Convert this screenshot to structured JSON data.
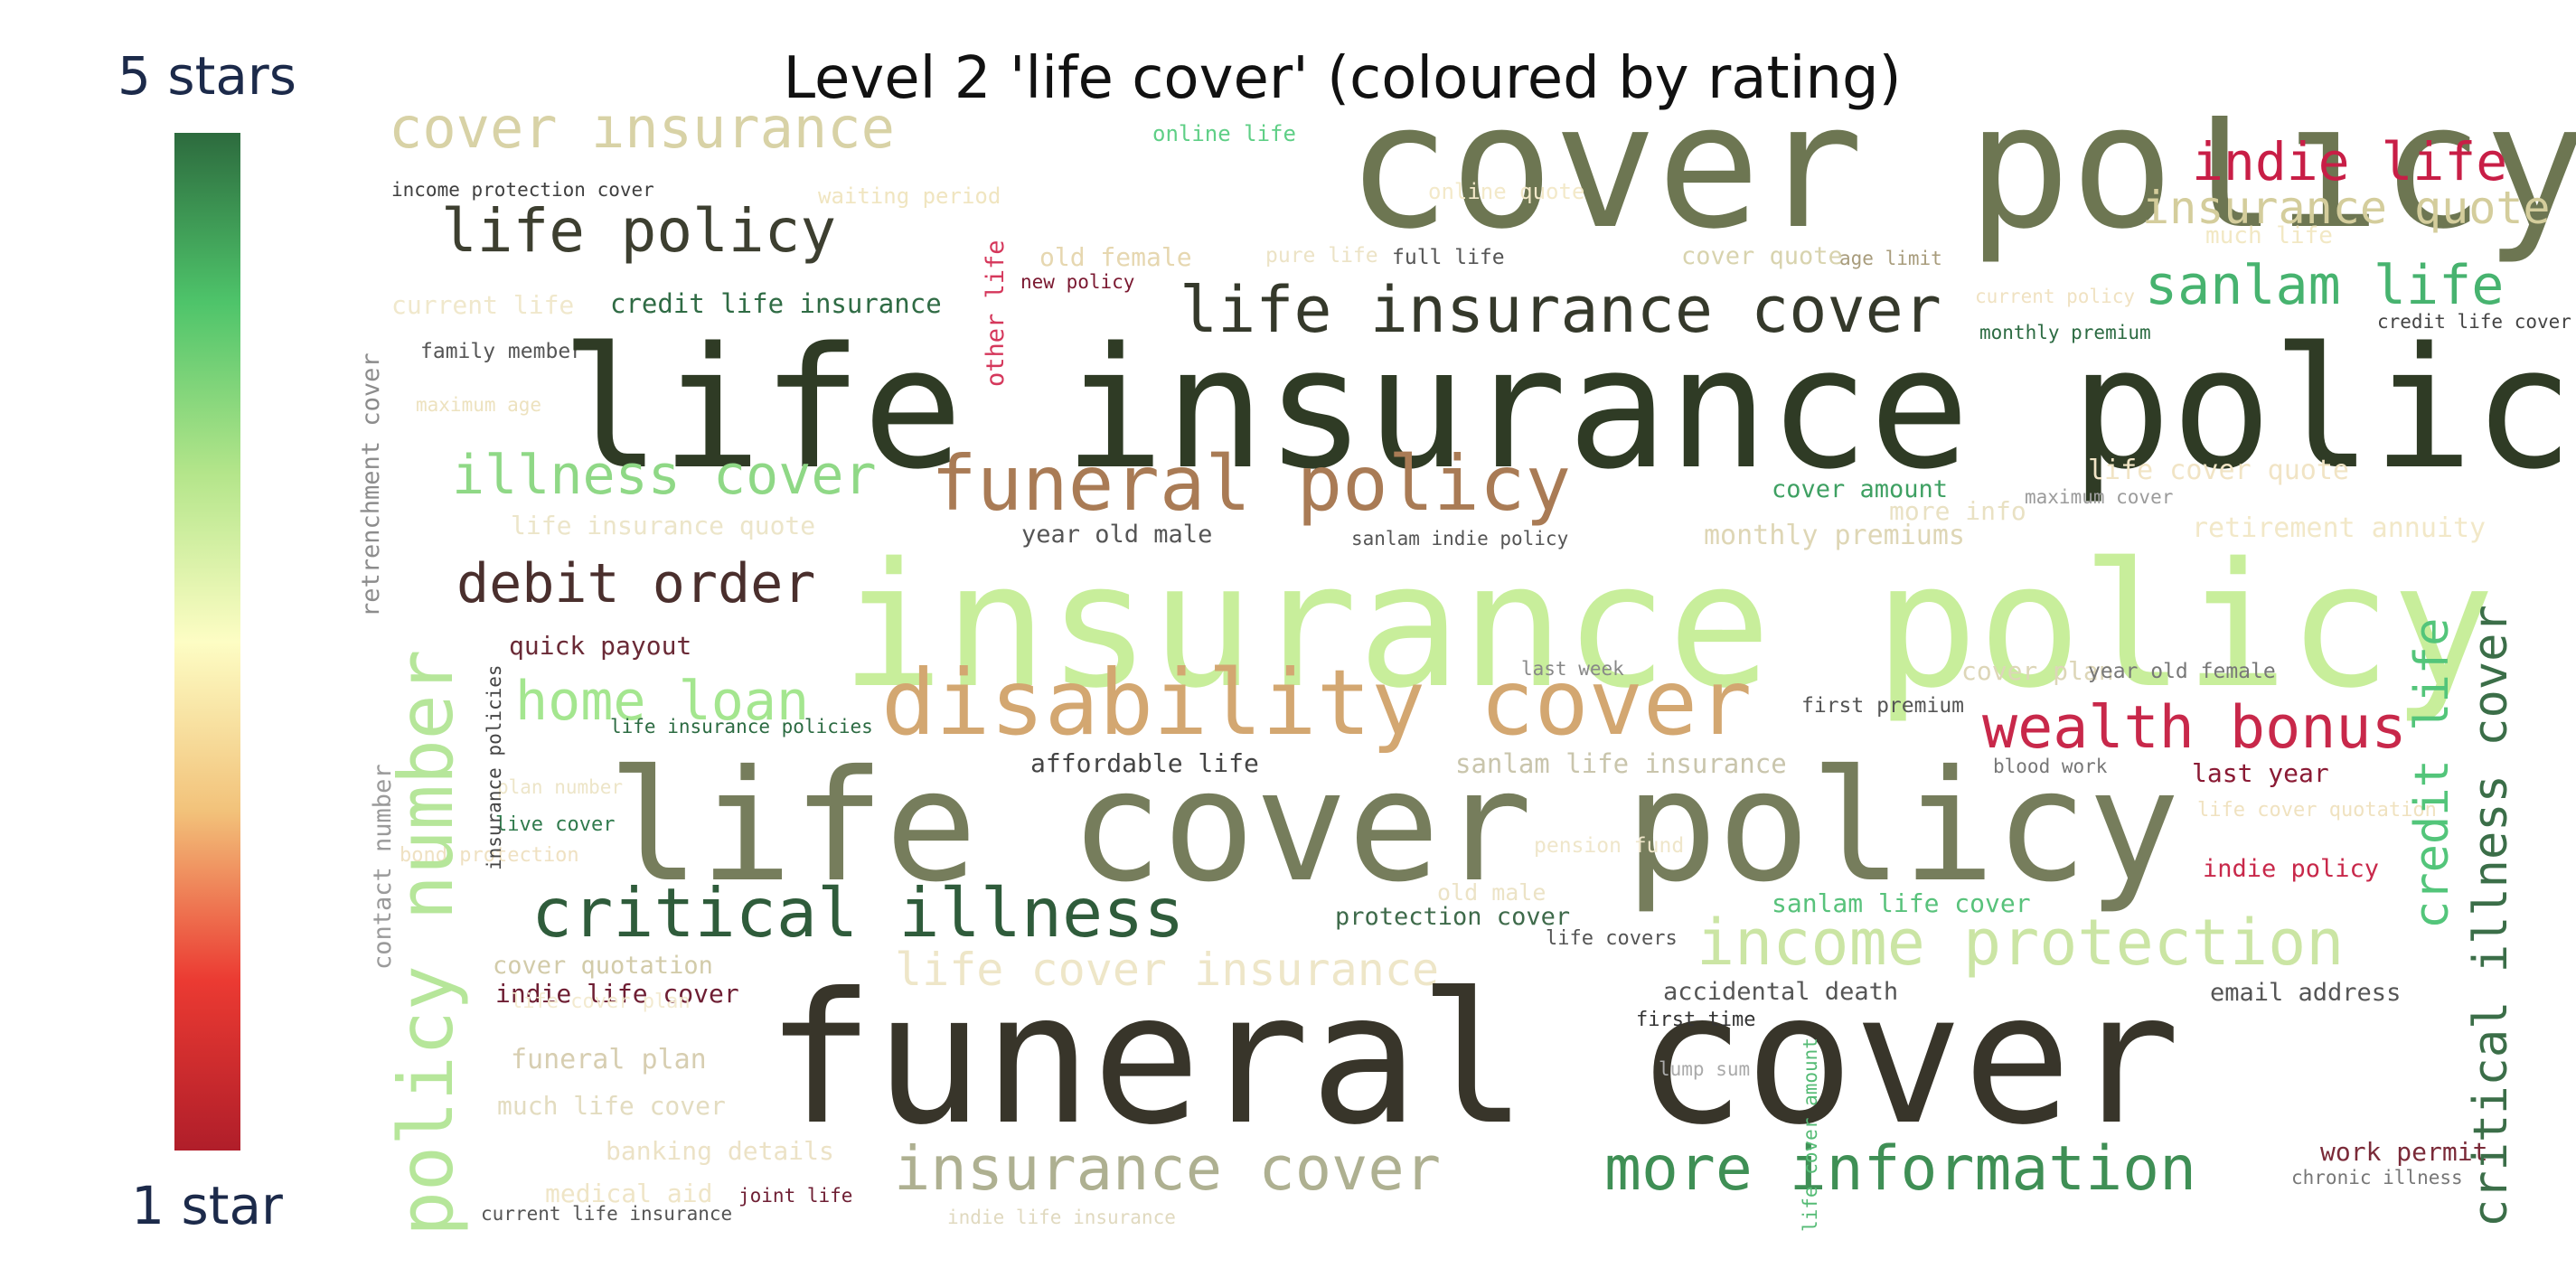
{
  "title": "Level 2 'life cover' (coloured by rating)",
  "colorbar": {
    "top_label": "5 stars",
    "bottom_label": "1 star",
    "colors": [
      "#2d6b3e",
      "#4ec46a",
      "#b3e58a",
      "#fdfdc4",
      "#f2c27a",
      "#eb3a32",
      "#b01e2a"
    ]
  },
  "words": [
    {
      "text": "cover insurance",
      "color": "#d8d2a6"
    },
    {
      "text": "cover policy",
      "color": "#6d7652"
    },
    {
      "text": "indie life",
      "color": "#c81e46"
    },
    {
      "text": "insurance quote",
      "color": "#d4cd9c"
    },
    {
      "text": "online life",
      "color": "#5fcf86"
    },
    {
      "text": "income protection cover",
      "color": "#3f3f3f"
    },
    {
      "text": "waiting period",
      "color": "#f0e5c0"
    },
    {
      "text": "online quote",
      "color": "#f3e9c9"
    },
    {
      "text": "much life",
      "color": "#f2e8c4"
    },
    {
      "text": "life policy",
      "color": "#3d3f30"
    },
    {
      "text": "old female",
      "color": "#e6d7b0"
    },
    {
      "text": "pure life",
      "color": "#ece3c6"
    },
    {
      "text": "full life",
      "color": "#555555"
    },
    {
      "text": "cover quote",
      "color": "#d8d3ae"
    },
    {
      "text": "age limit",
      "color": "#a89c7c"
    },
    {
      "text": "sanlam life",
      "color": "#47b36f"
    },
    {
      "text": "new policy",
      "color": "#7a1830"
    },
    {
      "text": "current policy",
      "color": "#f0e2c2"
    },
    {
      "text": "current life",
      "color": "#f0e8cc"
    },
    {
      "text": "credit life insurance",
      "color": "#2f6b44"
    },
    {
      "text": "life insurance cover",
      "color": "#35392b"
    },
    {
      "text": "monthly premium",
      "color": "#2c6b42"
    },
    {
      "text": "credit life cover",
      "color": "#444444"
    },
    {
      "text": "family member",
      "color": "#555555"
    },
    {
      "text": "maximum age",
      "color": "#ede2bf"
    },
    {
      "text": "life insurance policy",
      "color": "#2f3b25"
    },
    {
      "text": "illness cover",
      "color": "#8fd886"
    },
    {
      "text": "funeral policy",
      "color": "#a97b55"
    },
    {
      "text": "cover amount",
      "color": "#3ea062"
    },
    {
      "text": "maximum cover",
      "color": "#9b9b9b"
    },
    {
      "text": "life cover quote",
      "color": "#f1e4c5"
    },
    {
      "text": "more info",
      "color": "#e9e1c3"
    },
    {
      "text": "life insurance quote",
      "color": "#ece5c9"
    },
    {
      "text": "year old male",
      "color": "#555555"
    },
    {
      "text": "sanlam indie policy",
      "color": "#555555"
    },
    {
      "text": "monthly premiums",
      "color": "#ded6b5"
    },
    {
      "text": "retirement annuity",
      "color": "#f2e8c8"
    },
    {
      "text": "debit order",
      "color": "#4a2f2d"
    },
    {
      "text": "insurance policy",
      "color": "#c8ee9b"
    },
    {
      "text": "quick payout",
      "color": "#6a2a36"
    },
    {
      "text": "home loan",
      "color": "#a4e68f"
    },
    {
      "text": "disability cover",
      "color": "#d3a771"
    },
    {
      "text": "last week",
      "color": "#888888"
    },
    {
      "text": "cover plan",
      "color": "#ddd6b8"
    },
    {
      "text": "year old female",
      "color": "#777777"
    },
    {
      "text": "life insurance policies",
      "color": "#2c6b42"
    },
    {
      "text": "first premium",
      "color": "#555555"
    },
    {
      "text": "wealth bonus",
      "color": "#c8284a"
    },
    {
      "text": "affordable life",
      "color": "#444444"
    },
    {
      "text": "sanlam life insurance",
      "color": "#c9c5ac"
    },
    {
      "text": "blood work",
      "color": "#777777"
    },
    {
      "text": "last year",
      "color": "#8a1a34"
    },
    {
      "text": "plan number",
      "color": "#ede5c8"
    },
    {
      "text": "life cover policy",
      "color": "#767d5c"
    },
    {
      "text": "life cover quotation",
      "color": "#f0e2c0"
    },
    {
      "text": "live cover",
      "color": "#2f7a4c"
    },
    {
      "text": "bond protection",
      "color": "#efe1c2"
    },
    {
      "text": "pension fund",
      "color": "#efe6ca"
    },
    {
      "text": "indie policy",
      "color": "#c8284a"
    },
    {
      "text": "old male",
      "color": "#ece3c6"
    },
    {
      "text": "critical illness",
      "color": "#2f5c3b"
    },
    {
      "text": "protection cover",
      "color": "#3e6a4a"
    },
    {
      "text": "sanlam life cover",
      "color": "#58c27b"
    },
    {
      "text": "life covers",
      "color": "#555555"
    },
    {
      "text": "income protection",
      "color": "#cbe5a4"
    },
    {
      "text": "cover quotation",
      "color": "#d2cba9"
    },
    {
      "text": "life cover insurance",
      "color": "#eee6c8"
    },
    {
      "text": "indie life cover",
      "color": "#6e1e33"
    },
    {
      "text": "life cover plan",
      "color": "#f3ead0"
    },
    {
      "text": "accidental death",
      "color": "#555555"
    },
    {
      "text": "email address",
      "color": "#555555"
    },
    {
      "text": "funeral cover",
      "color": "#38352a"
    },
    {
      "text": "first time",
      "color": "#333333"
    },
    {
      "text": "funeral plan",
      "color": "#d7ceb1"
    },
    {
      "text": "lump sum",
      "color": "#aaaaaa"
    },
    {
      "text": "much life cover",
      "color": "#e3dcc0"
    },
    {
      "text": "banking details",
      "color": "#ece2c6"
    },
    {
      "text": "work permit",
      "color": "#7a2a38"
    },
    {
      "text": "medical aid",
      "color": "#efe5c7"
    },
    {
      "text": "joint life",
      "color": "#6e1e33"
    },
    {
      "text": "insurance cover",
      "color": "#aeb091"
    },
    {
      "text": "more information",
      "color": "#3f8f55"
    },
    {
      "text": "chronic illness",
      "color": "#777777"
    },
    {
      "text": "current life insurance",
      "color": "#555555"
    },
    {
      "text": "indie life insurance",
      "color": "#e0d9bf"
    },
    {
      "text": "retrenchment cover",
      "color": "#8c8c8c"
    },
    {
      "text": "other life",
      "color": "#d5375b"
    },
    {
      "text": "policy number",
      "color": "#b6e69a"
    },
    {
      "text": "insurance policies",
      "color": "#444444"
    },
    {
      "text": "contact number",
      "color": "#9a9a9a"
    },
    {
      "text": "life cover amount",
      "color": "#55bb75"
    },
    {
      "text": "credit life",
      "color": "#53c57a"
    },
    {
      "text": "critical illness cover",
      "color": "#3b6e48"
    }
  ]
}
